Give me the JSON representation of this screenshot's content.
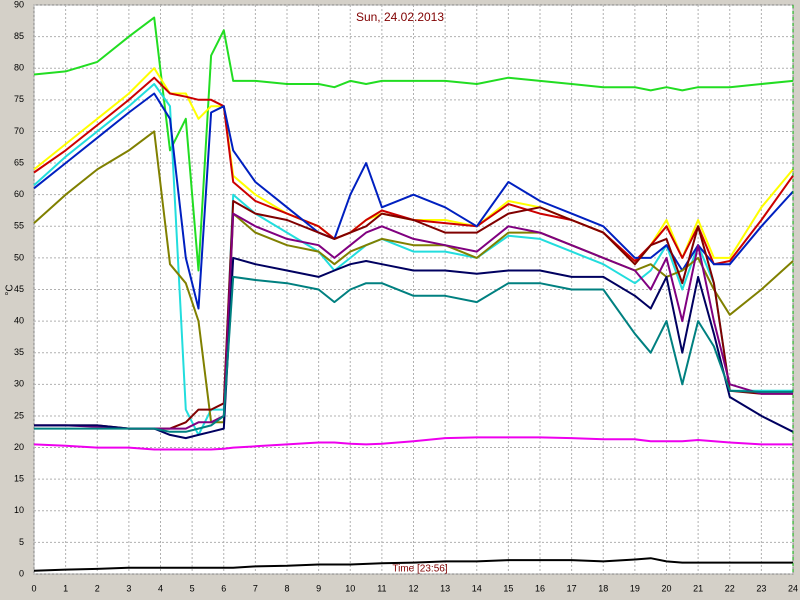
{
  "chart_data": {
    "type": "line",
    "title": "Sun, 24.02.2013",
    "y_label": "°C",
    "x_label": "Time [23:56]",
    "x": [
      0,
      1,
      2,
      3,
      3.8,
      4.3,
      4.8,
      5.2,
      5.6,
      6,
      6.3,
      7,
      8,
      9,
      9.5,
      10,
      10.5,
      11,
      12,
      13,
      14,
      15,
      16,
      17,
      18,
      19,
      19.5,
      20,
      20.5,
      21,
      21.5,
      22,
      23,
      24
    ],
    "xlim": [
      0,
      24
    ],
    "xticks": [
      0,
      1,
      2,
      3,
      4,
      5,
      6,
      7,
      8,
      9,
      10,
      11,
      12,
      13,
      14,
      15,
      16,
      17,
      18,
      19,
      20,
      21,
      22,
      23,
      24
    ],
    "ylim": [
      0,
      90
    ],
    "yticks": [
      0,
      5,
      10,
      15,
      20,
      25,
      30,
      35,
      40,
      45,
      50,
      55,
      60,
      65,
      70,
      75,
      80,
      85,
      90
    ],
    "grid": true,
    "series": [
      {
        "color": "#22dd22",
        "values": [
          79,
          79.5,
          81,
          85,
          88,
          67,
          72,
          48,
          82,
          86,
          78,
          78,
          77.5,
          77.5,
          77,
          78,
          77.5,
          78,
          78,
          78,
          77.5,
          78.5,
          78,
          77.5,
          77,
          77,
          76.5,
          77,
          76.5,
          77,
          77,
          77,
          77.5,
          78
        ]
      },
      {
        "color": "#ffff00",
        "values": [
          64,
          68,
          72,
          76,
          80,
          76,
          76,
          72,
          74,
          74,
          63,
          60,
          57,
          55,
          53,
          54,
          56,
          57,
          56,
          56,
          55,
          59,
          58,
          56,
          54,
          49,
          52,
          56,
          50,
          56,
          50,
          50,
          58,
          64
        ]
      },
      {
        "color": "#cc0000",
        "values": [
          63.5,
          67,
          71,
          75,
          78.5,
          76,
          75.5,
          75,
          75,
          74,
          62,
          59,
          57,
          55,
          53,
          54,
          56,
          57.5,
          56,
          55.5,
          55,
          58.5,
          57,
          56,
          54,
          49.5,
          52,
          55,
          50,
          55,
          49,
          49.5,
          56,
          63
        ]
      },
      {
        "color": "#22dddd",
        "values": [
          61.5,
          66,
          70,
          74,
          77.5,
          74,
          26,
          22,
          26,
          26,
          60,
          57,
          54,
          51,
          48,
          50,
          52,
          53,
          51,
          51,
          50,
          53.5,
          53,
          51,
          49,
          46,
          48,
          52,
          45,
          52,
          46,
          29,
          29,
          29
        ]
      },
      {
        "color": "#0020c0",
        "values": [
          61,
          65,
          69,
          73,
          76,
          72,
          50,
          42,
          73,
          74,
          67,
          62,
          58,
          54,
          53,
          60,
          65,
          58,
          60,
          58,
          55,
          62,
          59,
          57,
          55,
          50,
          50,
          52,
          48,
          52,
          49,
          49,
          55,
          60.5
        ]
      },
      {
        "color": "#808000",
        "values": [
          55.5,
          60,
          64,
          67,
          70,
          49,
          46,
          40,
          24,
          24,
          57,
          54,
          52,
          51,
          49,
          51,
          52,
          53,
          52,
          52,
          50,
          54,
          54,
          52,
          50,
          48,
          49,
          47,
          48,
          50,
          45,
          41,
          45,
          49.5
        ]
      },
      {
        "color": "#800000",
        "values": [
          23.5,
          23.5,
          23.5,
          23,
          23,
          23,
          24,
          26,
          26,
          27,
          59,
          57,
          56,
          54,
          53,
          54,
          55,
          57,
          56,
          54,
          54,
          57,
          58,
          56,
          54,
          49,
          52,
          53,
          46,
          55,
          46,
          29,
          28.5,
          28.5
        ]
      },
      {
        "color": "#800080",
        "values": [
          23.5,
          23.5,
          23.3,
          23,
          23,
          23,
          23,
          24,
          24,
          25,
          57,
          55,
          53,
          52,
          50,
          52,
          54,
          55,
          53,
          52,
          51,
          55,
          54,
          52,
          50,
          48,
          45,
          50,
          40,
          52,
          40,
          30,
          28.5,
          28.5
        ]
      },
      {
        "color": "#000060",
        "values": [
          23.5,
          23.5,
          23.5,
          23,
          23,
          22,
          21.5,
          22,
          22.5,
          23,
          50,
          49,
          48,
          47,
          48,
          49,
          49.5,
          49,
          48,
          48,
          47.5,
          48,
          48,
          47,
          47,
          44,
          42,
          47,
          35,
          47,
          38,
          28,
          25,
          22.5
        ]
      },
      {
        "color": "#008080",
        "values": [
          23,
          23,
          23,
          23,
          23,
          22.5,
          22.5,
          23,
          23.5,
          25,
          47,
          46.5,
          46,
          45,
          43,
          45,
          46,
          46,
          44,
          44,
          43,
          46,
          46,
          45,
          45,
          38,
          35,
          40,
          30,
          40,
          36,
          29,
          28.8,
          28.8
        ]
      },
      {
        "color": "#ee00ee",
        "values": [
          20.5,
          20.3,
          20,
          20,
          19.7,
          19.7,
          19.7,
          19.7,
          19.7,
          19.8,
          20,
          20.2,
          20.5,
          20.8,
          20.8,
          20.6,
          20.5,
          20.6,
          21,
          21.5,
          21.6,
          21.6,
          21.6,
          21.5,
          21.3,
          21.3,
          21,
          21,
          21,
          21.2,
          21,
          20.8,
          20.5,
          20.5
        ]
      },
      {
        "color": "#000000",
        "values": [
          0.5,
          0.7,
          0.8,
          1,
          1,
          1,
          1,
          1,
          1,
          1,
          1,
          1.2,
          1.3,
          1.5,
          1.5,
          1.5,
          1.6,
          1.7,
          1.8,
          2,
          2,
          2.2,
          2.2,
          2.2,
          2,
          2.3,
          2.5,
          2,
          1.8,
          1.8,
          1.8,
          1.8,
          1.8,
          1.8
        ]
      }
    ]
  }
}
